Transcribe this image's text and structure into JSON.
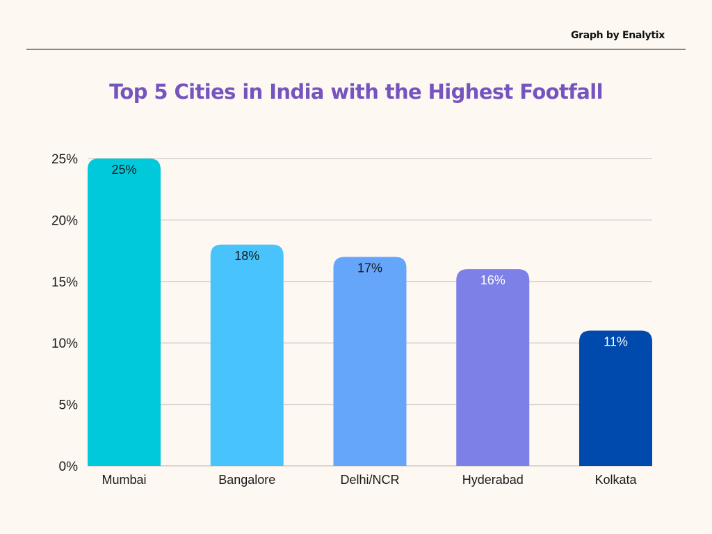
{
  "header": {
    "credit": "Graph by Enalytix"
  },
  "chart_data": {
    "type": "bar",
    "title": "Top 5 Cities in India with the Highest Footfall",
    "xlabel": "",
    "ylabel": "",
    "categories": [
      "Mumbai",
      "Bangalore",
      "Delhi/NCR",
      "Hyderabad",
      "Kolkata"
    ],
    "values": [
      25,
      18,
      17,
      16,
      11
    ],
    "value_labels": [
      "25%",
      "18%",
      "17%",
      "16%",
      "11%"
    ],
    "bar_colors": [
      "#00c9db",
      "#48c3fc",
      "#66a6fa",
      "#7d80e6",
      "#004aad"
    ],
    "value_label_colors": [
      "#1a1a1a",
      "#1a1a1a",
      "#1a1a1a",
      "#ffffff",
      "#ffffff"
    ],
    "ylim": [
      0,
      25
    ],
    "yticks": [
      0,
      5,
      10,
      15,
      20,
      25
    ],
    "ytick_labels": [
      "0%",
      "5%",
      "10%",
      "15%",
      "20%",
      "25%"
    ],
    "grid": true,
    "grid_color": "#d3d1cd",
    "title_color": "#7654bf"
  }
}
